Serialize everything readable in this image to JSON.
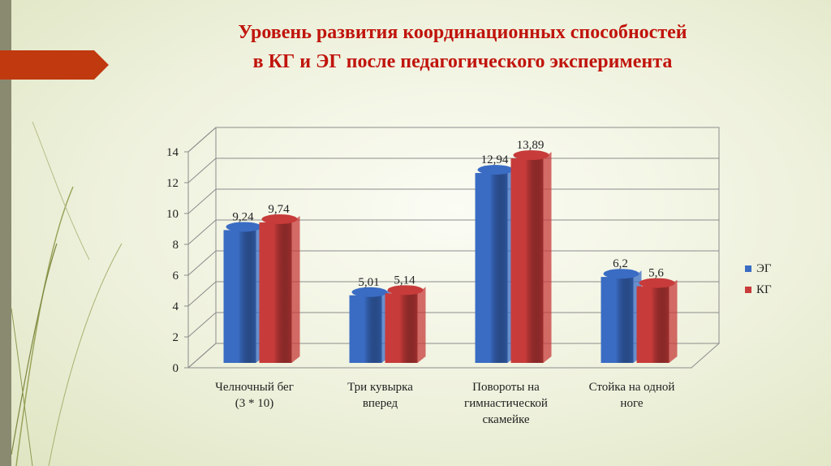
{
  "title": {
    "line1": "Уровень развития координационных способностей",
    "line2": "в КГ и ЭГ после педагогического эксперимента"
  },
  "colors": {
    "title": "#c0140c",
    "eg": "#3a6cc4",
    "kg": "#c73b3a",
    "accent_arrow": "#c0390f"
  },
  "chart_data": {
    "type": "bar",
    "categories": [
      "Челночный бег (3 * 10)",
      "Три кувырка вперед",
      "Повороты на гимнастической скамейке",
      "Стойка на одной ноге"
    ],
    "category_lines": [
      [
        "Челночный бег",
        "(3 * 10)"
      ],
      [
        "Три кувырка",
        "вперед"
      ],
      [
        "Повороты на",
        "гимнастической",
        "скамейке"
      ],
      [
        "Стойка на одной",
        "ноге"
      ]
    ],
    "series": [
      {
        "name": "ЭГ",
        "values": [
          9.24,
          5.01,
          12.94,
          6.2
        ],
        "labels": [
          "9,24",
          "5,01",
          "12,94",
          "6,2"
        ],
        "color": "#3a6cc4"
      },
      {
        "name": "КГ",
        "values": [
          9.74,
          5.14,
          13.89,
          5.6
        ],
        "labels": [
          "9,74",
          "5,14",
          "13,89",
          "5,6"
        ],
        "color": "#c73b3a"
      }
    ],
    "yticks": [
      "0",
      "2",
      "4",
      "6",
      "8",
      "10",
      "12",
      "14"
    ],
    "ylim": [
      0,
      14
    ],
    "grid": true,
    "legend_position": "right",
    "three_d": true
  }
}
